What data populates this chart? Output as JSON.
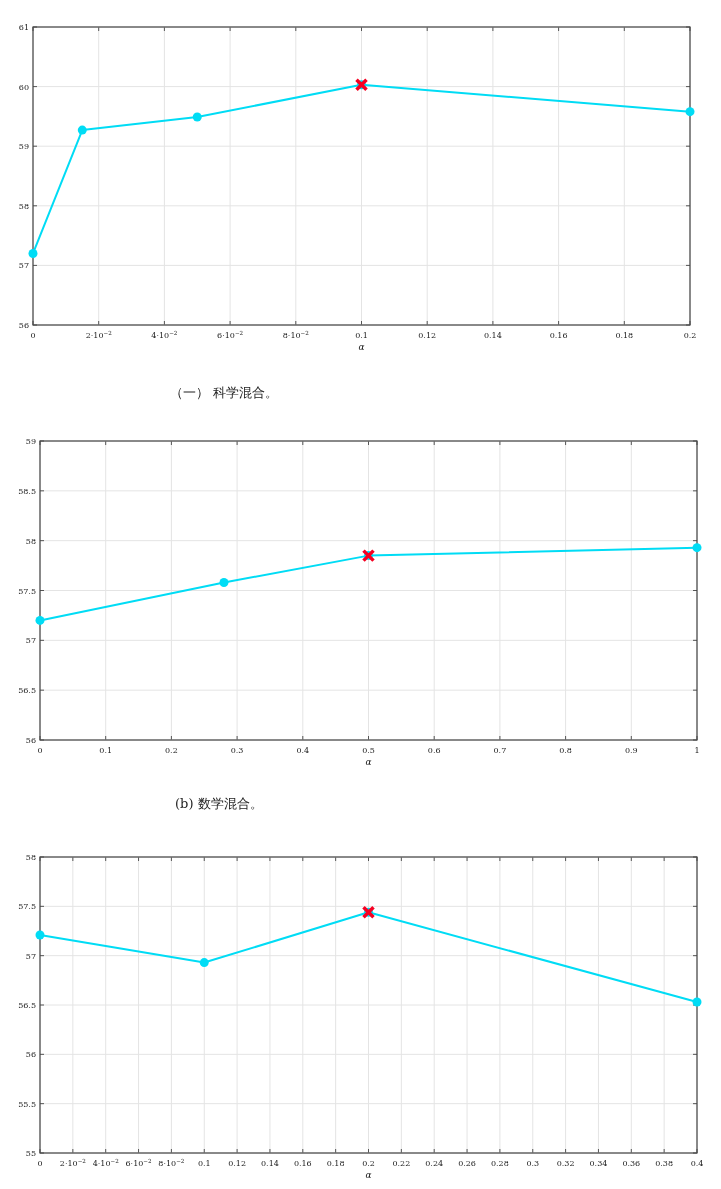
{
  "chart_data": [
    {
      "type": "line",
      "xlabel": "α",
      "annotations": [
        "（一） 科学混合。"
      ],
      "grid": true,
      "xlim": [
        0,
        0.2
      ],
      "ylim": [
        56,
        61
      ],
      "xticks": [
        0,
        {
          "value": 0.02,
          "label": "2·10$^{−2}$"
        },
        {
          "value": 0.04,
          "label": "4·10$^{−2}$"
        },
        {
          "value": 0.06,
          "label": "6·10$^{−2}$"
        },
        {
          "value": 0.08,
          "label": "8·10$^{−2}$"
        },
        0.1,
        0.12,
        0.14,
        0.16,
        0.18,
        0.2
      ],
      "yticks": [
        56,
        57,
        58,
        59,
        60,
        61
      ],
      "series": [
        {
          "type": "line",
          "marker": "circle",
          "color": "#00dcf5",
          "x": [
            0,
            0.015,
            0.05,
            0.1,
            0.2
          ],
          "values": [
            57.2,
            59.27,
            59.49,
            60.03,
            59.58
          ]
        },
        {
          "type": "scatter",
          "marker": "cross",
          "color": "#f50022",
          "x": [
            0.1
          ],
          "values": [
            60.03
          ]
        }
      ]
    },
    {
      "type": "line",
      "xlabel": "α",
      "annotations": [
        "(b) 数学混合。"
      ],
      "grid": true,
      "xlim": [
        0,
        1
      ],
      "ylim": [
        56,
        59
      ],
      "xticks": [
        0,
        0.1,
        0.2,
        0.3,
        0.4,
        0.5,
        0.6,
        0.7,
        0.8,
        0.9,
        1
      ],
      "yticks": [
        56,
        56.5,
        57,
        57.5,
        58,
        58.5,
        59
      ],
      "series": [
        {
          "type": "line",
          "marker": "circle",
          "color": "#00dcf5",
          "x": [
            0,
            0.28,
            0.5,
            1
          ],
          "values": [
            57.2,
            57.58,
            57.85,
            57.93
          ]
        },
        {
          "type": "scatter",
          "marker": "cross",
          "color": "#f50022",
          "x": [
            0.5
          ],
          "values": [
            57.85
          ]
        }
      ]
    },
    {
      "type": "line",
      "xlabel": "α",
      "grid": true,
      "xlim": [
        0,
        0.4
      ],
      "ylim": [
        55,
        58
      ],
      "xticks": [
        0,
        {
          "value": 0.02,
          "label": "2·10$^{−2}$"
        },
        {
          "value": 0.04,
          "label": "4·10$^{−2}$"
        },
        {
          "value": 0.06,
          "label": "6·10$^{−2}$"
        },
        {
          "value": 0.08,
          "label": "8·10$^{−2}$"
        },
        0.1,
        0.12,
        0.14,
        0.16,
        0.18,
        0.2,
        0.22,
        0.24,
        0.26,
        0.28,
        0.3,
        0.32,
        0.34,
        0.36,
        0.38,
        0.4
      ],
      "yticks": [
        55,
        55.5,
        56,
        56.5,
        57,
        57.5,
        58
      ],
      "series": [
        {
          "type": "line",
          "marker": "circle",
          "color": "#00dcf5",
          "x": [
            0,
            0.1,
            0.2,
            0.4
          ],
          "values": [
            57.21,
            56.93,
            57.44,
            56.53
          ]
        },
        {
          "type": "scatter",
          "marker": "cross",
          "color": "#f50022",
          "x": [
            0.2
          ],
          "values": [
            57.44
          ]
        }
      ]
    }
  ]
}
